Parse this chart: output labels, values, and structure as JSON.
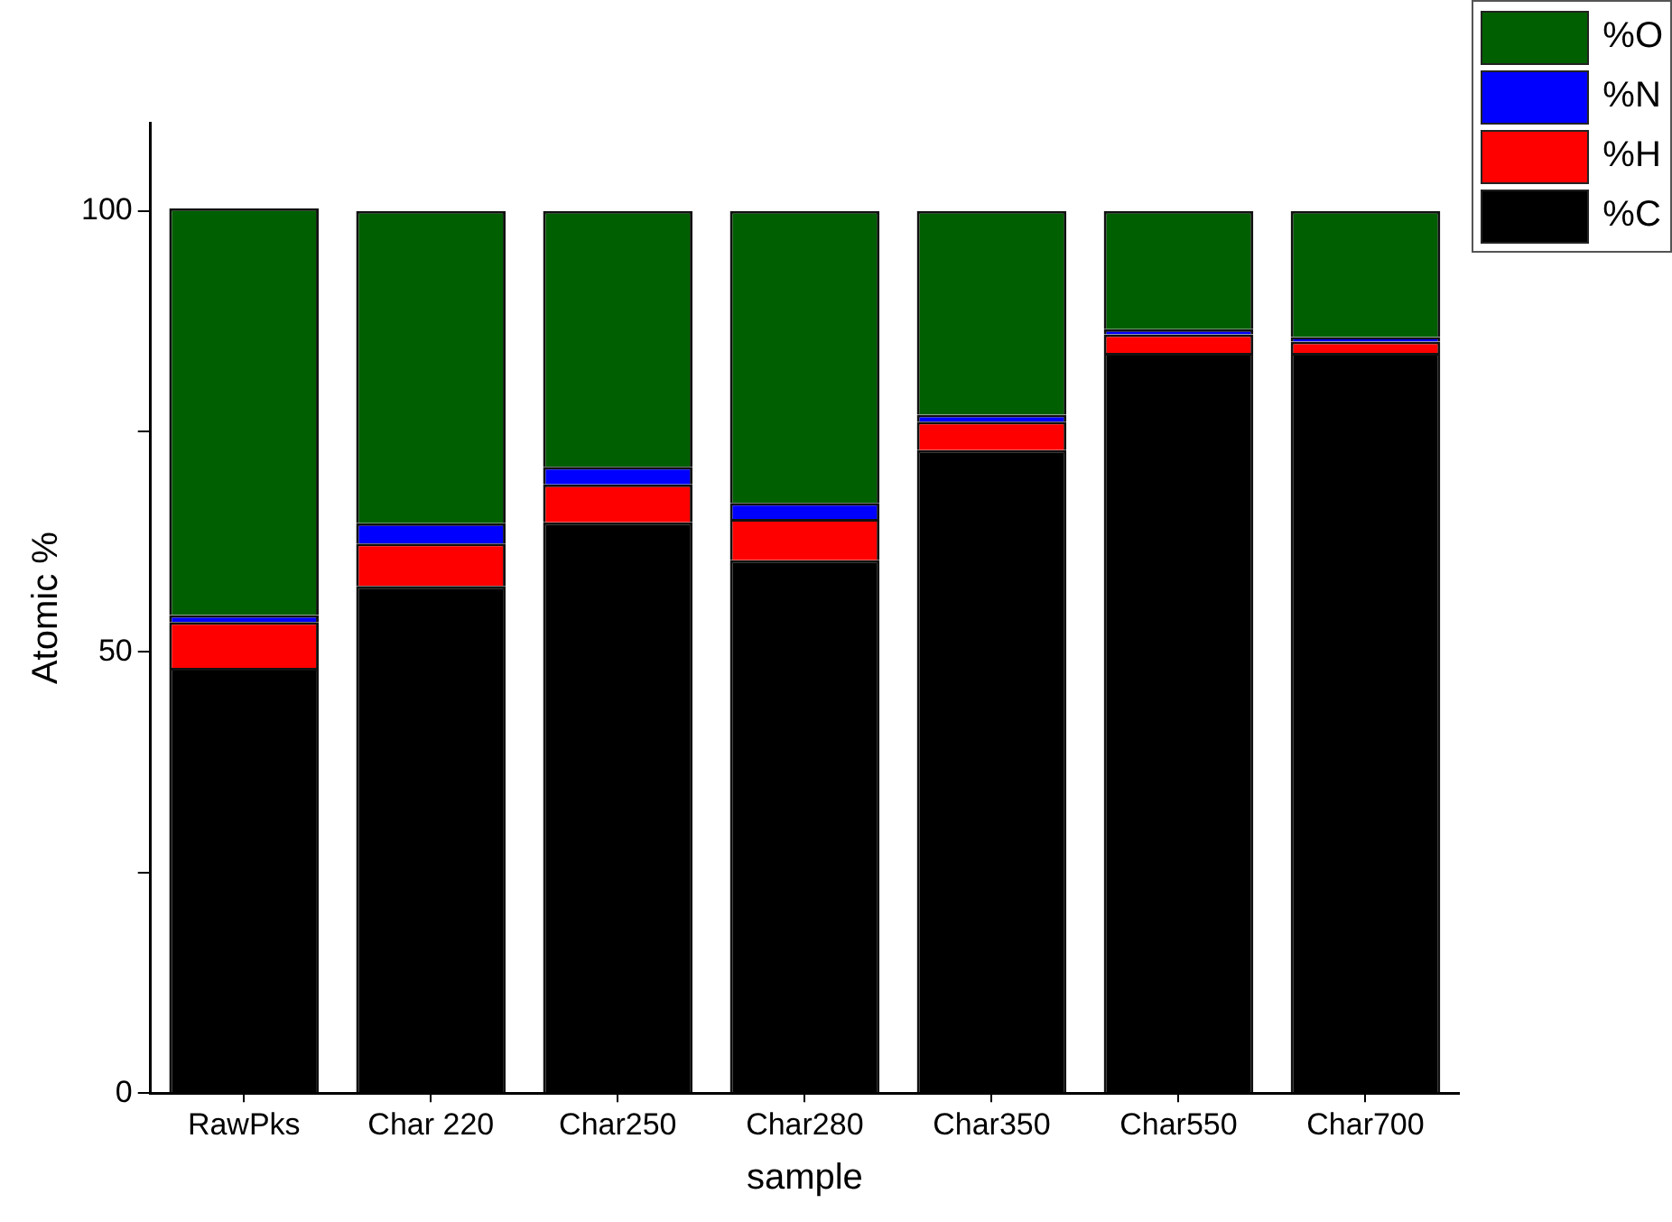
{
  "chart_data": {
    "type": "bar",
    "stacked": true,
    "xlabel": "sample",
    "ylabel": "Atomic %",
    "categories": [
      "RawPks",
      "Char 220",
      "Char250",
      "Char280",
      "Char350",
      "Char550",
      "Char700"
    ],
    "series": [
      {
        "name": "%C",
        "color": "#000000",
        "values": [
          48.2,
          57.5,
          64.7,
          60.4,
          72.9,
          83.9,
          83.9
        ]
      },
      {
        "name": "%H",
        "color": "#ff0000",
        "values": [
          5.2,
          4.8,
          4.3,
          4.7,
          3.2,
          2.1,
          1.3
        ]
      },
      {
        "name": "%N",
        "color": "#0000ff",
        "values": [
          0.8,
          2.3,
          2.0,
          1.8,
          0.8,
          0.6,
          0.5
        ]
      },
      {
        "name": "%O",
        "color": "#005f00",
        "values": [
          46.1,
          35.4,
          29.0,
          33.1,
          23.1,
          13.4,
          14.3
        ]
      }
    ],
    "ylim": [
      0,
      110
    ],
    "yticks": [
      0,
      {
        "value": 25,
        "label": null
      },
      50,
      {
        "value": 75,
        "label": null
      },
      100
    ],
    "grid": false,
    "legend": "top right"
  }
}
